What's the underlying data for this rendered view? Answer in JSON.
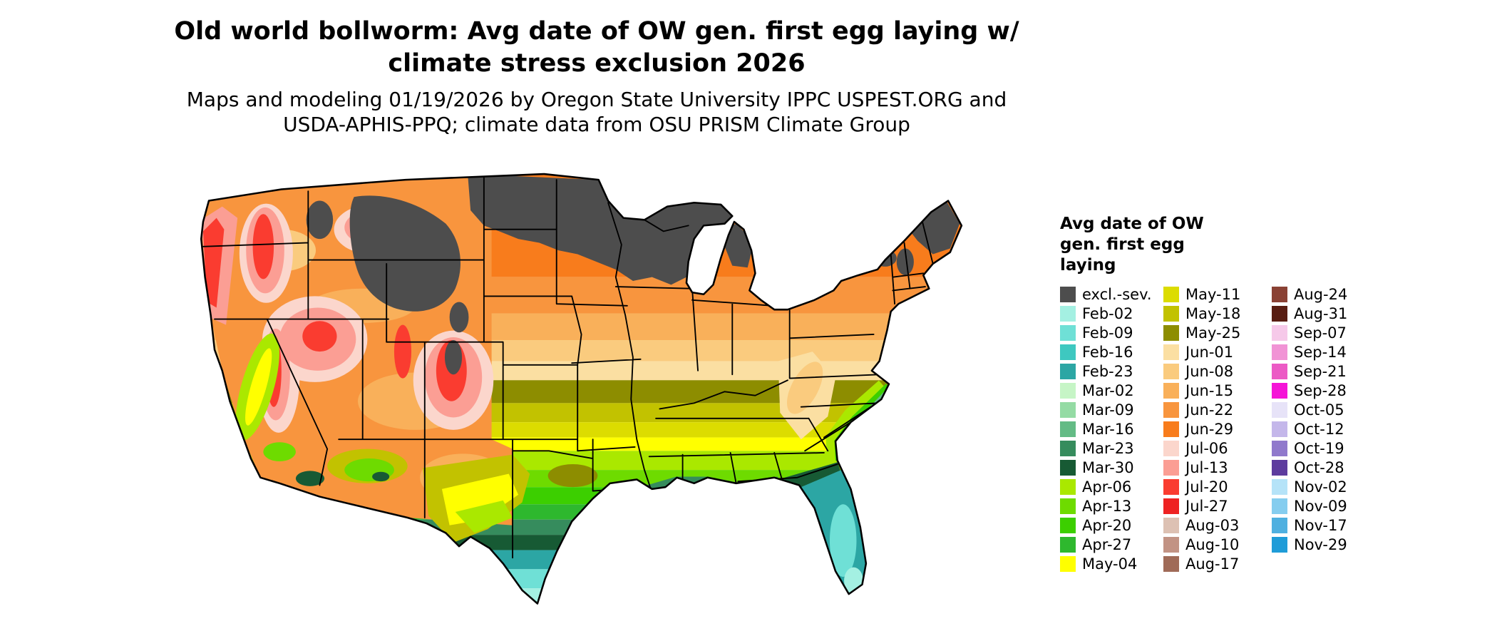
{
  "header": {
    "title_line1": "Old world bollworm: Avg date of OW gen. first egg laying w/",
    "title_line2": "climate stress exclusion 2026",
    "subtitle_line1": "Maps and modeling 01/19/2026 by Oregon State University IPPC USPEST.ORG and",
    "subtitle_line2": "USDA-APHIS-PPQ; climate data from OSU PRISM Climate Group"
  },
  "legend": {
    "title_line1": "Avg date of OW",
    "title_line2": "gen. first egg",
    "title_line3": "laying",
    "columns": [
      {
        "entries": [
          {
            "label": "excl.-sev.",
            "color": "#4D4D4D"
          },
          {
            "label": "Feb-02",
            "color": "#A4F0E2"
          },
          {
            "label": "Feb-09",
            "color": "#6FE0D6"
          },
          {
            "label": "Feb-16",
            "color": "#3EC8C0"
          },
          {
            "label": "Feb-23",
            "color": "#2CA6A4"
          },
          {
            "label": "Mar-02",
            "color": "#C6F5C6"
          },
          {
            "label": "Mar-09",
            "color": "#94DBA4"
          },
          {
            "label": "Mar-16",
            "color": "#63BB85"
          },
          {
            "label": "Mar-23",
            "color": "#368C5D"
          },
          {
            "label": "Mar-30",
            "color": "#175A34"
          },
          {
            "label": "Apr-06",
            "color": "#AAE800"
          },
          {
            "label": "Apr-13",
            "color": "#6EDB00"
          },
          {
            "label": "Apr-20",
            "color": "#3CCF00"
          },
          {
            "label": "Apr-27",
            "color": "#2EB82E"
          },
          {
            "label": "May-04",
            "color": "#FFFF00"
          }
        ]
      },
      {
        "entries": [
          {
            "label": "May-11",
            "color": "#DCDC00"
          },
          {
            "label": "May-18",
            "color": "#C2C200"
          },
          {
            "label": "May-25",
            "color": "#8D8D00"
          },
          {
            "label": "Jun-01",
            "color": "#FBDFA2"
          },
          {
            "label": "Jun-08",
            "color": "#FACB7E"
          },
          {
            "label": "Jun-15",
            "color": "#F9B05A"
          },
          {
            "label": "Jun-22",
            "color": "#F8953E"
          },
          {
            "label": "Jun-29",
            "color": "#F87C1C"
          },
          {
            "label": "Jul-06",
            "color": "#FBD6CC"
          },
          {
            "label": "Jul-13",
            "color": "#FB9E94"
          },
          {
            "label": "Jul-20",
            "color": "#FA3C30"
          },
          {
            "label": "Jul-27",
            "color": "#EE2222"
          },
          {
            "label": "Aug-03",
            "color": "#DDC1B3"
          },
          {
            "label": "Aug-10",
            "color": "#C29384"
          },
          {
            "label": "Aug-17",
            "color": "#A06B58"
          }
        ]
      },
      {
        "entries": [
          {
            "label": "Aug-24",
            "color": "#8A4134"
          },
          {
            "label": "Aug-31",
            "color": "#581D12"
          },
          {
            "label": "Sep-07",
            "color": "#F6C9E9"
          },
          {
            "label": "Sep-14",
            "color": "#F193D5"
          },
          {
            "label": "Sep-21",
            "color": "#EC5AC5"
          },
          {
            "label": "Sep-28",
            "color": "#F514D7"
          },
          {
            "label": "Oct-05",
            "color": "#E7E3F8"
          },
          {
            "label": "Oct-12",
            "color": "#C4B7EA"
          },
          {
            "label": "Oct-19",
            "color": "#9079CC"
          },
          {
            "label": "Oct-28",
            "color": "#5D3C9E"
          },
          {
            "label": "Nov-02",
            "color": "#B5E3F8"
          },
          {
            "label": "Nov-09",
            "color": "#85CDEF"
          },
          {
            "label": "Nov-17",
            "color": "#4FB0E0"
          },
          {
            "label": "Nov-29",
            "color": "#1F9CD8"
          }
        ]
      }
    ]
  },
  "map": {
    "background": "#FFFFFF",
    "outline_color": "#000000"
  }
}
